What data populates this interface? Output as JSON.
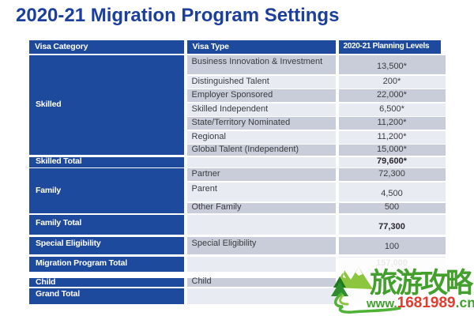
{
  "title": "2020-21 Migration Program Settings",
  "table": {
    "headers": [
      "Visa Category",
      "Visa Type",
      "2020-21 Planning Levels"
    ],
    "groups": [
      {
        "category": "Skilled",
        "rows": [
          {
            "type": "Business Innovation & Investment",
            "value": "13,500*"
          },
          {
            "type": "Distinguished Talent",
            "value": "200*"
          },
          {
            "type": "Employer Sponsored",
            "value": "22,000*"
          },
          {
            "type": "Skilled Independent",
            "value": "6,500*"
          },
          {
            "type": "State/Territory Nominated",
            "value": "11,200*"
          },
          {
            "type": "Regional",
            "value": "11,200*"
          },
          {
            "type": "Global Talent (Independent)",
            "value": "15,000*"
          }
        ]
      },
      {
        "category": "Skilled Total",
        "rows": [
          {
            "type": "",
            "value": "79,600*"
          }
        ]
      },
      {
        "category": "Family",
        "rows": [
          {
            "type": "Partner",
            "value": "72,300"
          },
          {
            "type": "Parent",
            "value": "4,500"
          },
          {
            "type": "Other Family",
            "value": "500"
          }
        ]
      },
      {
        "category": "Family Total",
        "rows": [
          {
            "type": "",
            "value": "77,300"
          }
        ]
      },
      {
        "category": "Special Eligibility",
        "rows": [
          {
            "type": "Special Eligibility",
            "value": "100"
          }
        ]
      },
      {
        "category": "Migration Program Total",
        "rows": [
          {
            "type": "",
            "value": "157,000"
          }
        ]
      },
      {
        "category": "Child",
        "rows": [
          {
            "type": "Child",
            "value": ""
          }
        ]
      },
      {
        "category": "Grand Total",
        "rows": [
          {
            "type": "",
            "value": ""
          }
        ]
      }
    ]
  },
  "watermark": {
    "brand": "旅游攻略",
    "url_prefix": "www.",
    "url_number": "1681989",
    "url_suffix": ".cn",
    "logo": "mountain-tree-swoosh-logo",
    "green": "#3f9e2c",
    "red": "#e23c2e"
  },
  "colors": {
    "title": "#1c3f9d",
    "header_bg": "#1e4a9e",
    "category_bg": "#1e4a9e",
    "row_dark": "#c9cdd9",
    "row_light": "#e9ebf2"
  }
}
